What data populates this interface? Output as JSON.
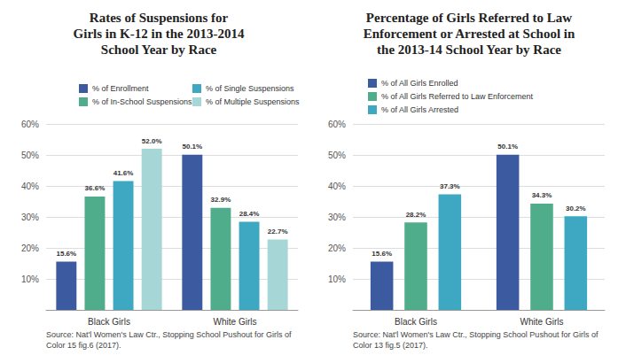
{
  "chart_data": [
    {
      "type": "bar",
      "title": "Rates of Suspensions for\nGirls in K-12 in the 2013-2014\nSchool Year by Race",
      "categories": [
        "Black Girls",
        "White Girls"
      ],
      "series": [
        {
          "name": "% of Enrollment",
          "color": "#3c5a9f",
          "values": [
            15.6,
            50.1
          ],
          "value_labels": [
            "15.6%",
            "50.1%"
          ]
        },
        {
          "name": "% of In-School Suspensions",
          "color": "#4fad8b",
          "values": [
            36.6,
            32.9
          ],
          "value_labels": [
            "36.6%",
            "32.9%"
          ]
        },
        {
          "name": "% of Single Suspensions",
          "color": "#3ea8c2",
          "values": [
            41.6,
            28.4
          ],
          "value_labels": [
            "41.6%",
            "28.4%"
          ]
        },
        {
          "name": "% of Multiple Suspensions",
          "color": "#a6d7d6",
          "values": [
            52.0,
            22.7
          ],
          "value_labels": [
            "52.0%",
            "22.7%"
          ]
        }
      ],
      "ylim": [
        0,
        60
      ],
      "yticks": [
        {
          "value": 10,
          "label": "10%"
        },
        {
          "value": 20,
          "label": "20%"
        },
        {
          "value": 30,
          "label": "30%"
        },
        {
          "value": 40,
          "label": "40%"
        },
        {
          "value": 50,
          "label": "50%"
        },
        {
          "value": 60,
          "label": "60%"
        }
      ],
      "grid": true,
      "legend": "top",
      "data_labels": true,
      "source": "Source: Nat'l Women's Law Ctr., Stopping School Pushout for Girls of Color 15 fig.6 (2017)."
    },
    {
      "type": "bar",
      "title": "Percentage of Girls Referred to Law\nEnforcement or Arrested at School in\nthe 2013-14 School Year by Race",
      "categories": [
        "Black Girls",
        "White Girls"
      ],
      "series": [
        {
          "name": "% of All Girls Enrolled",
          "color": "#3c5a9f",
          "values": [
            15.6,
            50.1
          ],
          "value_labels": [
            "15.6%",
            "50.1%"
          ]
        },
        {
          "name": "% of All Girls Referred to Law Enforcement",
          "color": "#4fad8b",
          "values": [
            28.2,
            34.3
          ],
          "value_labels": [
            "28.2%",
            "34.3%"
          ]
        },
        {
          "name": "% of All Girls Arrested",
          "color": "#3ea8c2",
          "values": [
            37.3,
            30.2
          ],
          "value_labels": [
            "37.3%",
            "30.2%"
          ]
        }
      ],
      "ylim": [
        0,
        60
      ],
      "yticks": [
        {
          "value": 10,
          "label": "10%"
        },
        {
          "value": 20,
          "label": "20%"
        },
        {
          "value": 30,
          "label": "30%"
        },
        {
          "value": 40,
          "label": "40%"
        },
        {
          "value": 50,
          "label": "50%"
        },
        {
          "value": 60,
          "label": "60%"
        }
      ],
      "grid": true,
      "legend": "top",
      "data_labels": true,
      "source": "Source: Nat'l Women's Law Ctr., Stopping School Pushout for Girls of Color 13 fig.5 (2017)."
    }
  ]
}
